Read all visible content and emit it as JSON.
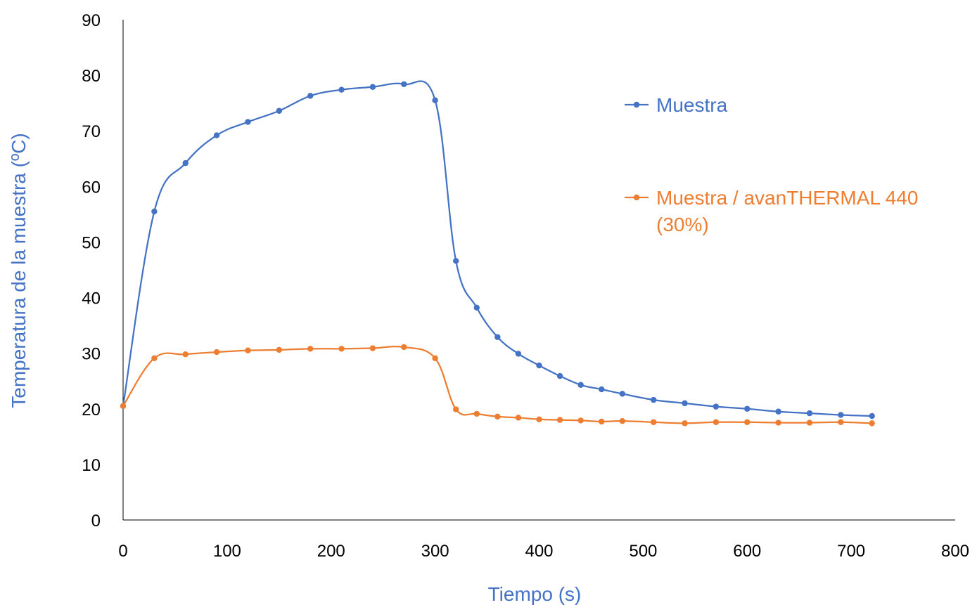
{
  "chart_data": {
    "type": "line",
    "xlabel": "Tiempo (s)",
    "ylabel": "Temperatura de la muestra (ºC)",
    "xlim": [
      0,
      800
    ],
    "ylim": [
      0,
      90
    ],
    "x_ticks": [
      0,
      100,
      200,
      300,
      400,
      500,
      600,
      700,
      800
    ],
    "y_ticks": [
      0,
      10,
      20,
      30,
      40,
      50,
      60,
      70,
      80,
      90
    ],
    "grid": false,
    "legend_position": "right",
    "axis_title_color": "#4472C4",
    "series": [
      {
        "name": "Muestra",
        "legend_lines": [
          "Muestra"
        ],
        "color": "#4472C4",
        "x": [
          0,
          30,
          60,
          90,
          120,
          150,
          180,
          210,
          240,
          270,
          300,
          320,
          340,
          360,
          380,
          400,
          420,
          440,
          460,
          480,
          510,
          540,
          570,
          600,
          630,
          660,
          690,
          720
        ],
        "y": [
          20.5,
          55.5,
          64.2,
          69.2,
          71.6,
          73.6,
          76.3,
          77.4,
          77.9,
          78.4,
          75.5,
          46.6,
          38.2,
          32.9,
          29.9,
          27.8,
          25.9,
          24.3,
          23.5,
          22.7,
          21.6,
          21.0,
          20.4,
          20.0,
          19.5,
          19.2,
          18.9,
          18.7
        ]
      },
      {
        "name": "Muestra / avanTHERMAL 440 (30%)",
        "legend_lines": [
          "Muestra / avanTHERMAL 440",
          "(30%)"
        ],
        "color": "#ED7D31",
        "x": [
          0,
          30,
          60,
          90,
          120,
          150,
          180,
          210,
          240,
          270,
          300,
          320,
          340,
          360,
          380,
          400,
          420,
          440,
          460,
          480,
          510,
          540,
          570,
          600,
          630,
          660,
          690,
          720
        ],
        "y": [
          20.5,
          29.1,
          29.8,
          30.2,
          30.5,
          30.6,
          30.8,
          30.8,
          30.9,
          31.1,
          29.1,
          19.9,
          19.1,
          18.6,
          18.4,
          18.1,
          18.0,
          17.9,
          17.7,
          17.8,
          17.6,
          17.4,
          17.6,
          17.6,
          17.5,
          17.5,
          17.6,
          17.4
        ]
      }
    ]
  }
}
